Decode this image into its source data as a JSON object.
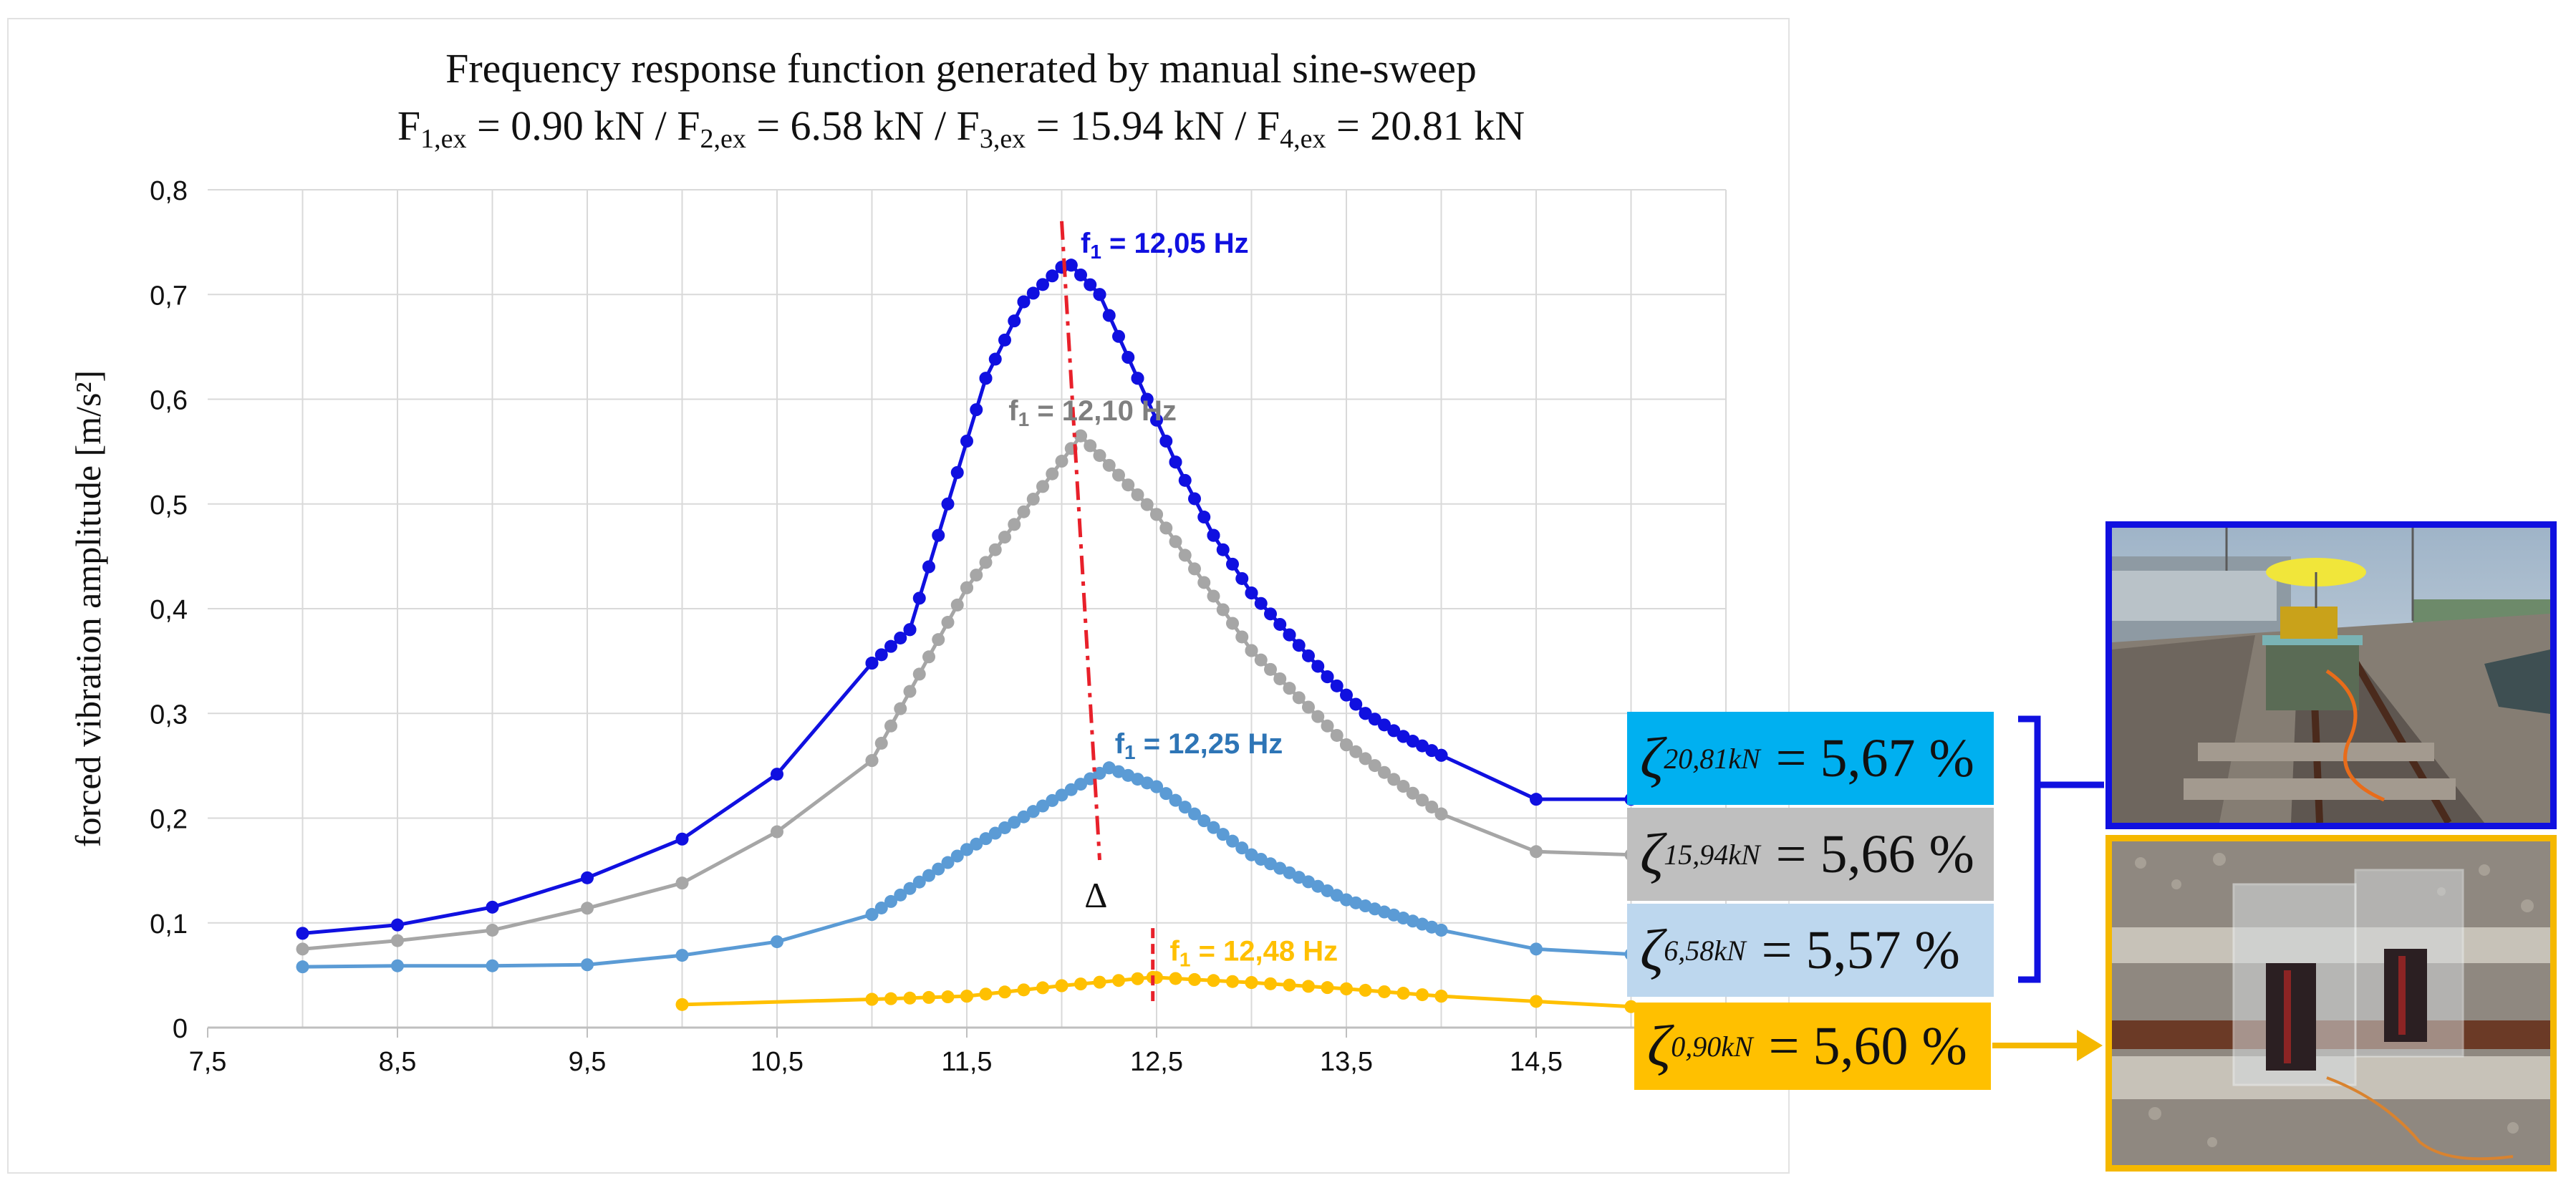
{
  "chart_data": {
    "type": "line",
    "title": "Frequency response function generated by manual sine-sweep",
    "subtitle": {
      "parts": [
        {
          "t": "F"
        },
        {
          "sub": "1,ex"
        },
        {
          "t": " = 0.90 kN / F"
        },
        {
          "sub": "2,ex"
        },
        {
          "t": " = 6.58 kN / F"
        },
        {
          "sub": "3,ex"
        },
        {
          "t": " = 15.94 kN / F"
        },
        {
          "sub": "4,ex"
        },
        {
          "t": " = 20.81 kN"
        }
      ]
    },
    "xlabel": "",
    "ylabel": "forced vibration amplitude [m/s²]",
    "xlim": [
      7.5,
      15.5
    ],
    "ylim": [
      0,
      0.8
    ],
    "xticks": [
      "7,5",
      "8,5",
      "9,5",
      "10,5",
      "11,5",
      "12,5",
      "13,5",
      "14,5"
    ],
    "yticks": [
      "0",
      "0,1",
      "0,2",
      "0,3",
      "0,4",
      "0,5",
      "0,6",
      "0,7",
      "0,8"
    ],
    "grid": true,
    "series": [
      {
        "name": "F4,ex = 20.81 kN",
        "color": "#1010e0",
        "peak_x": 12.05,
        "peak_y": 0.728,
        "width": 0.85,
        "base": 0.075,
        "x": [
          8,
          8.5,
          9,
          9.5,
          10,
          10.5,
          11,
          11.2,
          11.6,
          11.8,
          12.0,
          12.05,
          12.2,
          12.4,
          12.6,
          12.8,
          13.0,
          13.2,
          13.4,
          13.6,
          13.8,
          14,
          14.5,
          15
        ],
        "values": [
          0.09,
          0.098,
          0.115,
          0.143,
          0.18,
          0.242,
          0.348,
          0.38,
          0.62,
          0.693,
          0.726,
          0.728,
          0.7,
          0.62,
          0.54,
          0.47,
          0.415,
          0.375,
          0.335,
          0.3,
          0.278,
          0.26,
          0.218,
          0.218
        ]
      },
      {
        "name": "F3,ex = 15.94 kN",
        "color": "#a6a6a6",
        "peak_x": 12.1,
        "peak_y": 0.565,
        "width": 0.85,
        "base": 0.06,
        "x": [
          8,
          8.5,
          9,
          9.5,
          10,
          10.5,
          11,
          11.5,
          12.1,
          12.5,
          13,
          13.5,
          14,
          14.5,
          15
        ],
        "values": [
          0.075,
          0.083,
          0.093,
          0.114,
          0.138,
          0.187,
          0.255,
          0.42,
          0.565,
          0.49,
          0.36,
          0.27,
          0.204,
          0.168,
          0.165
        ]
      },
      {
        "name": "F2,ex = 6.58 kN",
        "color": "#5b9bd5",
        "peak_x": 12.25,
        "peak_y": 0.248,
        "width": 0.75,
        "base": 0.055,
        "x": [
          8,
          8.5,
          9,
          9.5,
          10,
          10.5,
          11,
          11.5,
          12.25,
          12.5,
          13,
          13.5,
          14,
          14.5,
          15
        ],
        "values": [
          0.058,
          0.059,
          0.059,
          0.06,
          0.069,
          0.082,
          0.108,
          0.17,
          0.248,
          0.23,
          0.165,
          0.122,
          0.093,
          0.075,
          0.07
        ]
      },
      {
        "name": "F1,ex = 0.90 kN",
        "color": "#ffc000",
        "peak_x": 12.48,
        "peak_y": 0.048,
        "width": 0.9,
        "base": 0.022,
        "x": [
          10,
          11,
          11.5,
          12,
          12.48,
          13,
          13.5,
          14,
          14.5,
          15
        ],
        "values": [
          0.022,
          0.027,
          0.03,
          0.04,
          0.048,
          0.043,
          0.037,
          0.03,
          0.025,
          0.02
        ]
      }
    ],
    "annotations": [
      {
        "label": "f",
        "sub": "1",
        "rest": " = 12,05 Hz",
        "color": "#1010e0",
        "x": 12.1,
        "y": 0.74
      },
      {
        "label": "f",
        "sub": "1",
        "rest": " = 12,10 Hz",
        "color": "#7f7f7f",
        "x": 11.72,
        "y": 0.58
      },
      {
        "label": "f",
        "sub": "1",
        "rest": " = 12,25 Hz",
        "color": "#2e75b6",
        "x": 12.28,
        "y": 0.262
      },
      {
        "label": "f",
        "sub": "1",
        "rest": " = 12,48 Hz",
        "color": "#ffc000",
        "x": 12.57,
        "y": 0.064
      }
    ],
    "shift_line": {
      "color": "#e8202a",
      "x_start": 12.0,
      "y_start": 0.77,
      "x_end": 12.2,
      "y_end": 0.16
    },
    "peak_marker": {
      "color": "#e8202a",
      "x": 12.48,
      "y_start": 0.095,
      "y_end": 0.02
    },
    "delta_label": "Δ",
    "delta_position": {
      "x": 12.12,
      "y": 0.115
    }
  },
  "damping": [
    {
      "symbol": "ζ",
      "sub": "20,81kN",
      "value": "= 5,67 %",
      "color": "#00b0f0"
    },
    {
      "symbol": "ζ",
      "sub": "15,94kN",
      "value": "= 5,66 %",
      "color": "#bfbfbf"
    },
    {
      "symbol": "ζ",
      "sub": "6,58kN",
      "value": "= 5,57 %",
      "color": "#bdd7ee"
    },
    {
      "symbol": "ζ",
      "sub": "0,90kN",
      "value": "= 5,60 %",
      "color": "#ffc000"
    }
  ],
  "connectors": {
    "bracket_color": "#1010e0",
    "arrow_color": "#f5b800"
  }
}
